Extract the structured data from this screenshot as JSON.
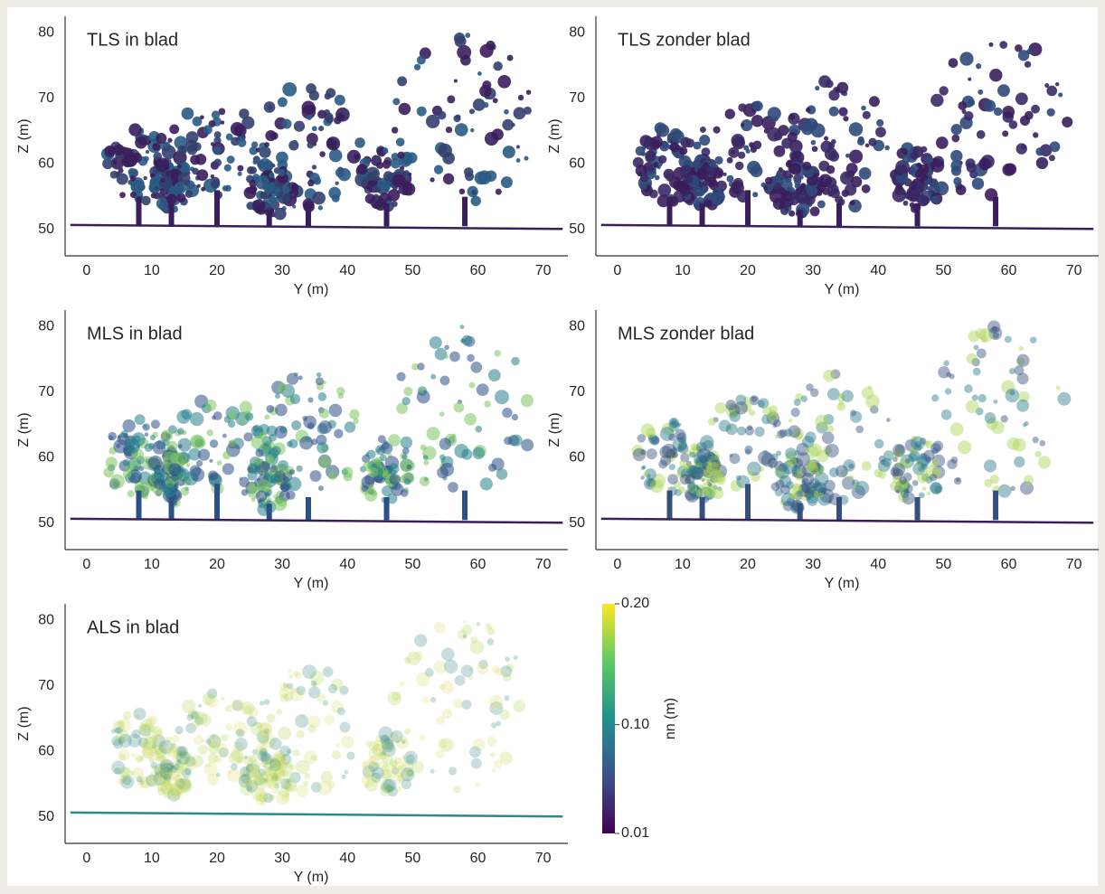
{
  "chart_data": [
    {
      "type": "point-cloud",
      "title": "TLS in blad",
      "x_label": "Y (m)",
      "y_label": "Z (m)",
      "xlim": [
        -3.3,
        73.8
      ],
      "ylim": [
        46,
        82.5
      ],
      "xticks": [
        0,
        10,
        20,
        30,
        40,
        50,
        60,
        70
      ],
      "yticks": [
        50,
        60,
        70,
        80
      ]
    },
    {
      "type": "point-cloud",
      "title": "TLS zonder blad",
      "x_label": "Y (m)",
      "y_label": "Z (m)",
      "xlim": [
        -3.3,
        73.8
      ],
      "ylim": [
        46,
        82.5
      ],
      "xticks": [
        0,
        10,
        20,
        30,
        40,
        50,
        60,
        70
      ],
      "yticks": [
        50,
        60,
        70,
        80
      ]
    },
    {
      "type": "point-cloud",
      "title": "MLS in blad",
      "x_label": "Y (m)",
      "y_label": "Z (m)",
      "xlim": [
        -3.3,
        73.8
      ],
      "ylim": [
        46,
        82.5
      ],
      "xticks": [
        0,
        10,
        20,
        30,
        40,
        50,
        60,
        70
      ],
      "yticks": [
        50,
        60,
        70,
        80
      ]
    },
    {
      "type": "point-cloud",
      "title": "MLS zonder blad",
      "x_label": "Y (m)",
      "y_label": "Z (m)",
      "xlim": [
        -3.3,
        73.8
      ],
      "ylim": [
        46,
        82.5
      ],
      "xticks": [
        0,
        10,
        20,
        30,
        40,
        50,
        60,
        70
      ],
      "yticks": [
        50,
        60,
        70,
        80
      ]
    },
    {
      "type": "point-cloud",
      "title": "ALS in blad",
      "x_label": "Y (m)",
      "y_label": "Z (m)",
      "xlim": [
        -3.3,
        73.8
      ],
      "ylim": [
        46,
        82.5
      ],
      "xticks": [
        0,
        10,
        20,
        30,
        40,
        50,
        60,
        70
      ],
      "yticks": [
        50,
        60,
        70,
        80
      ]
    },
    {
      "type": "colorbar",
      "label": "nn (m)",
      "ylim": [
        0.01,
        0.2
      ],
      "yticks": [
        0.01,
        {
          "value": 0.1,
          "label": "0.10"
        },
        {
          "value": 0.2,
          "label": "0.20"
        }
      ]
    }
  ]
}
